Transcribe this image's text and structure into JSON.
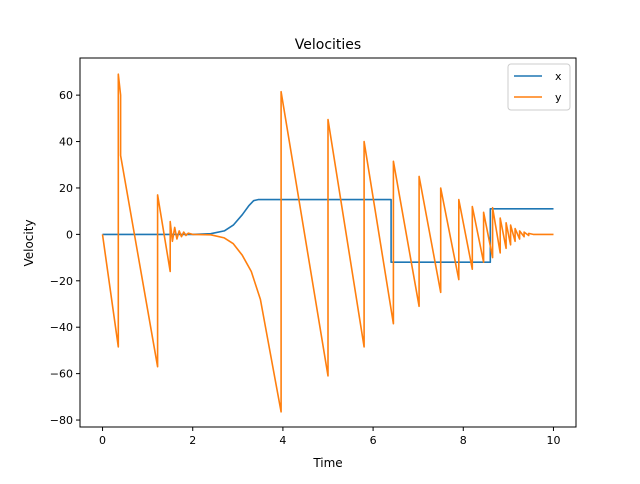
{
  "chart_data": {
    "type": "line",
    "title": "Velocities",
    "xlabel": "Time",
    "ylabel": "Velocity",
    "xlim": [
      -0.5,
      10.5
    ],
    "ylim": [
      -83,
      76
    ],
    "xticks": [
      0,
      2,
      4,
      6,
      8,
      10
    ],
    "xtick_labels": [
      "0",
      "2",
      "4",
      "6",
      "8",
      "10"
    ],
    "yticks": [
      -80,
      -60,
      -40,
      -20,
      0,
      20,
      40,
      60
    ],
    "ytick_labels": [
      "−80",
      "−60",
      "−40",
      "−20",
      "0",
      "20",
      "40",
      "60"
    ],
    "grid": false,
    "legend_position": "top-right",
    "colors": {
      "x": "#1f77b4",
      "y": "#ff7f0e"
    },
    "series": [
      {
        "name": "x",
        "color": "#1f77b4",
        "points": [
          [
            0,
            0
          ],
          [
            2.0,
            0
          ],
          [
            2.4,
            0.3
          ],
          [
            2.7,
            1.5
          ],
          [
            2.9,
            4
          ],
          [
            3.1,
            8.5
          ],
          [
            3.25,
            12.5
          ],
          [
            3.35,
            14.5
          ],
          [
            3.45,
            15
          ],
          [
            6.4,
            15
          ],
          [
            6.4,
            -12
          ],
          [
            8.6,
            -12
          ],
          [
            8.6,
            11
          ],
          [
            10,
            11
          ]
        ]
      },
      {
        "name": "y",
        "color": "#ff7f0e",
        "points": [
          [
            0,
            0
          ],
          [
            0.35,
            -48.5
          ],
          [
            0.35,
            69
          ],
          [
            0.4,
            60
          ],
          [
            0.4,
            34
          ],
          [
            1.22,
            -57
          ],
          [
            1.22,
            17
          ],
          [
            1.5,
            -16
          ],
          [
            1.5,
            5.5
          ],
          [
            1.55,
            -3
          ],
          [
            1.6,
            3
          ],
          [
            1.65,
            -2
          ],
          [
            1.7,
            1.5
          ],
          [
            1.75,
            -1
          ],
          [
            1.8,
            1
          ],
          [
            1.85,
            -0.5
          ],
          [
            1.9,
            0.5
          ],
          [
            2.0,
            0
          ],
          [
            2.4,
            -0.2
          ],
          [
            2.7,
            -1.5
          ],
          [
            2.9,
            -4
          ],
          [
            3.1,
            -9
          ],
          [
            3.3,
            -16
          ],
          [
            3.5,
            -28
          ],
          [
            3.96,
            -76.5
          ],
          [
            3.96,
            61.5
          ],
          [
            5.0,
            -61
          ],
          [
            5.0,
            49.5
          ],
          [
            5.8,
            -48.5
          ],
          [
            5.8,
            40
          ],
          [
            6.45,
            -38.5
          ],
          [
            6.45,
            31.5
          ],
          [
            7.02,
            -31
          ],
          [
            7.02,
            25
          ],
          [
            7.5,
            -25
          ],
          [
            7.5,
            20
          ],
          [
            7.9,
            -19.5
          ],
          [
            7.9,
            15
          ],
          [
            8.2,
            -15
          ],
          [
            8.2,
            12
          ],
          [
            8.45,
            -12
          ],
          [
            8.45,
            9.5
          ],
          [
            8.65,
            -10
          ],
          [
            8.65,
            11.5
          ],
          [
            8.82,
            -8
          ],
          [
            8.82,
            7
          ],
          [
            8.95,
            -6
          ],
          [
            8.95,
            5
          ],
          [
            9.05,
            -4.5
          ],
          [
            9.05,
            4
          ],
          [
            9.15,
            -3
          ],
          [
            9.15,
            2.5
          ],
          [
            9.25,
            -2
          ],
          [
            9.25,
            1.5
          ],
          [
            9.35,
            -1
          ],
          [
            9.35,
            1
          ],
          [
            9.45,
            -0.5
          ],
          [
            9.45,
            0.4
          ],
          [
            9.55,
            0
          ],
          [
            10,
            0
          ]
        ]
      }
    ]
  }
}
